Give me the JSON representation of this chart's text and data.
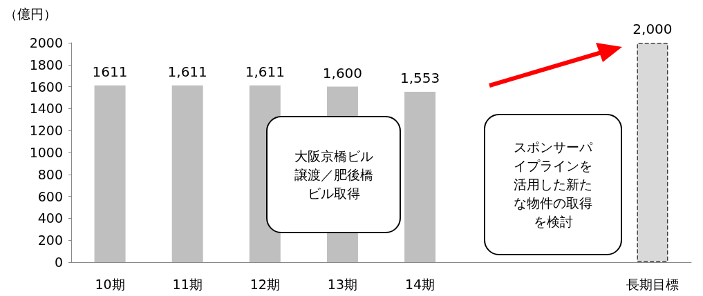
{
  "chart_data": {
    "type": "bar",
    "ylabel": "（億円）",
    "categories": [
      "10期",
      "11期",
      "12期",
      "13期",
      "14期",
      null,
      null,
      "長期目標"
    ],
    "values": [
      1611,
      1611,
      1611,
      1600,
      1553,
      null,
      null,
      2000
    ],
    "value_labels": [
      "1611",
      "1,611",
      "1,611",
      "1,600",
      "1,553",
      null,
      null,
      "2,000"
    ],
    "colors": [
      "#bfbfbf",
      "#bfbfbf",
      "#bfbfbf",
      "#bfbfbf",
      "#bfbfbf",
      null,
      null,
      "#d9d9d9"
    ],
    "ylim": [
      0,
      2000
    ],
    "yticks": [
      0,
      200,
      400,
      600,
      800,
      1000,
      1200,
      1400,
      1600,
      1800,
      2000
    ],
    "grid": false,
    "annotations": [
      "大阪京橋ビル譲渡／肥後橋ビル取得",
      "スポンサーパイプラインを活用した新たな物件の取得を検討"
    ]
  }
}
